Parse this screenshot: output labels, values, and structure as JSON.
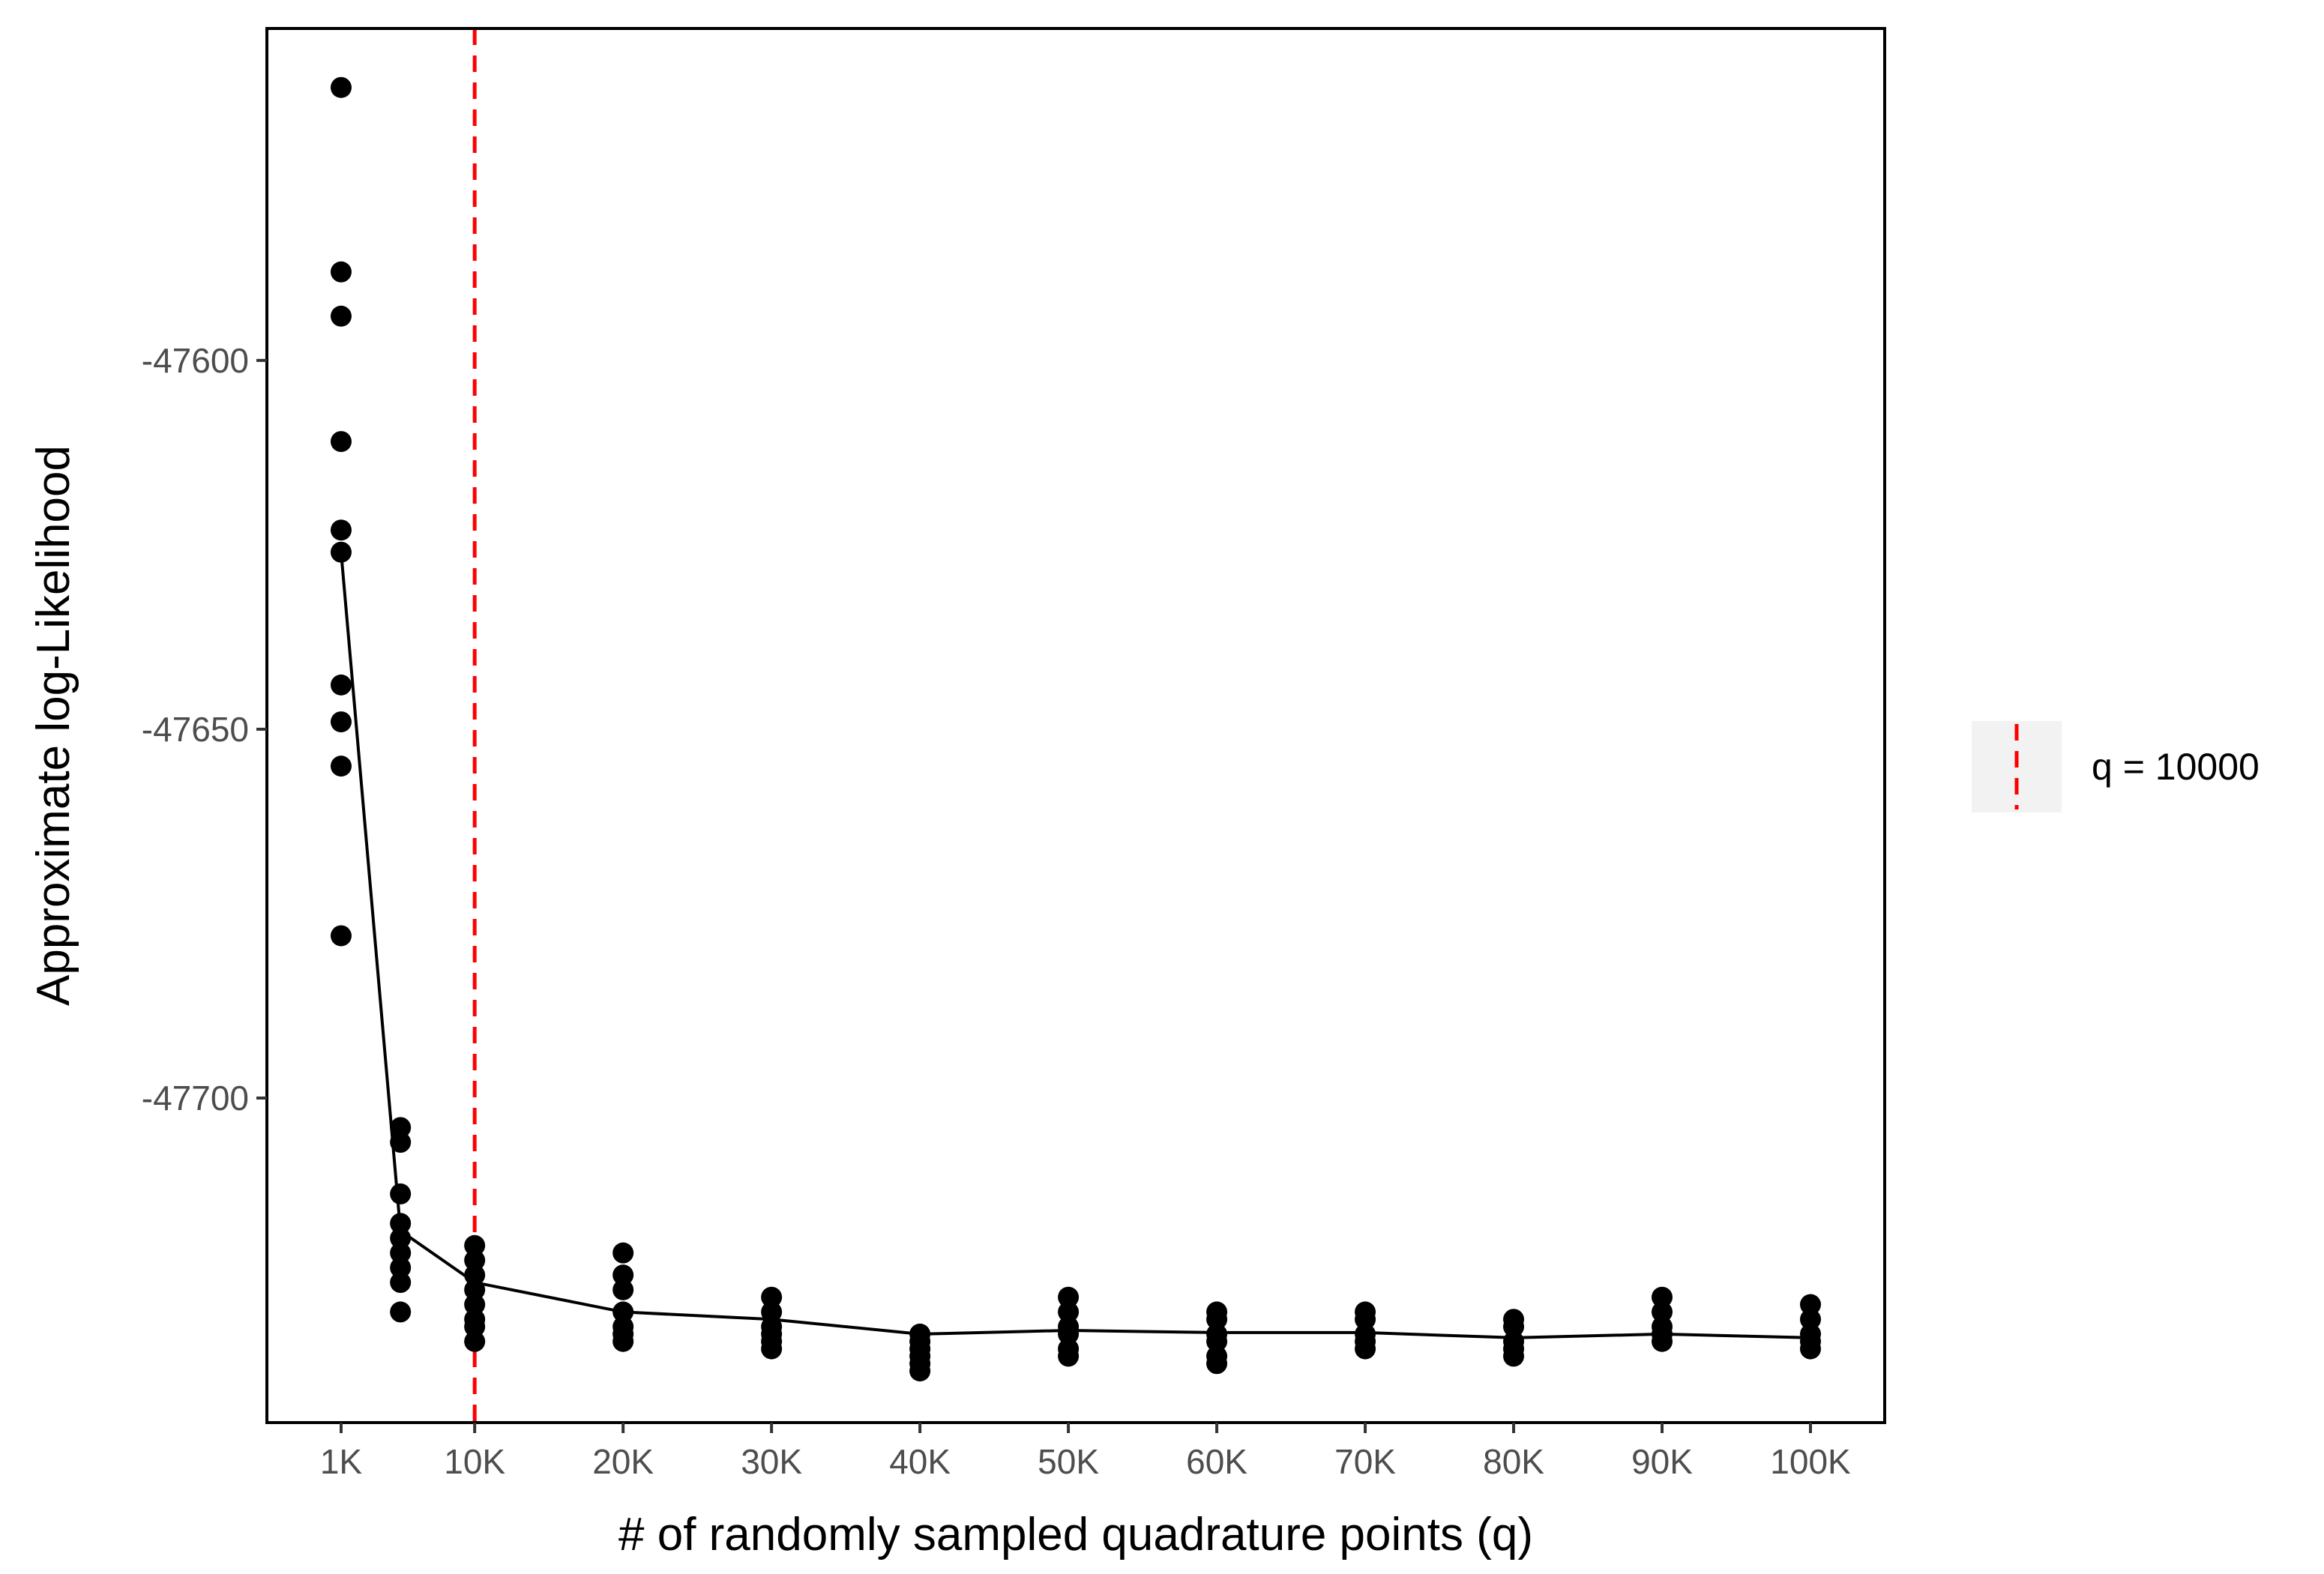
{
  "chart_data": {
    "type": "scatter",
    "xlabel": "# of randomly sampled quadrature points (q)",
    "ylabel": "Approximate log-Likelihood",
    "x_tick_values": [
      1000,
      10000,
      20000,
      30000,
      40000,
      50000,
      60000,
      70000,
      80000,
      90000,
      100000
    ],
    "x_tick_labels": [
      "1K",
      "10K",
      "20K",
      "30K",
      "40K",
      "50K",
      "60K",
      "70K",
      "80K",
      "90K",
      "100K"
    ],
    "y_tick_values": [
      -47600,
      -47650,
      -47700
    ],
    "y_tick_labels": [
      "-47600",
      "-47650",
      "-47700"
    ],
    "xlim": [
      -4000,
      105000
    ],
    "ylim": [
      -47744,
      -47555
    ],
    "grid": false,
    "legend_position": "right",
    "reference_line": {
      "x": 10000,
      "label": "q = 10000",
      "color": "#ff0000",
      "style": "dashed"
    },
    "points": [
      {
        "x": 1000,
        "y": [
          -47563,
          -47588,
          -47594,
          -47611,
          -47623,
          -47626,
          -47644,
          -47649,
          -47655,
          -47678
        ]
      },
      {
        "x": 5000,
        "y": [
          -47704,
          -47706,
          -47713,
          -47717,
          -47719,
          -47721,
          -47723,
          -47725,
          -47729
        ]
      },
      {
        "x": 10000,
        "y": [
          -47720,
          -47722,
          -47724,
          -47726,
          -47728,
          -47730,
          -47731,
          -47733
        ]
      },
      {
        "x": 20000,
        "y": [
          -47721,
          -47724,
          -47726,
          -47729,
          -47731,
          -47732,
          -47733
        ]
      },
      {
        "x": 30000,
        "y": [
          -47727,
          -47729,
          -47731,
          -47732,
          -47733,
          -47734
        ]
      },
      {
        "x": 40000,
        "y": [
          -47732,
          -47733,
          -47734,
          -47735,
          -47736,
          -47737
        ]
      },
      {
        "x": 50000,
        "y": [
          -47727,
          -47729,
          -47731,
          -47732,
          -47734,
          -47735
        ]
      },
      {
        "x": 60000,
        "y": [
          -47729,
          -47730,
          -47732,
          -47733,
          -47735,
          -47736
        ]
      },
      {
        "x": 70000,
        "y": [
          -47729,
          -47730,
          -47732,
          -47733,
          -47734
        ]
      },
      {
        "x": 80000,
        "y": [
          -47730,
          -47731,
          -47733,
          -47734,
          -47735
        ]
      },
      {
        "x": 90000,
        "y": [
          -47727,
          -47729,
          -47731,
          -47732,
          -47733
        ]
      },
      {
        "x": 100000,
        "y": [
          -47728,
          -47730,
          -47732,
          -47733,
          -47734
        ]
      }
    ],
    "mean_line": {
      "x": [
        1000,
        5000,
        10000,
        20000,
        30000,
        40000,
        50000,
        60000,
        70000,
        80000,
        90000,
        100000
      ],
      "y": [
        -47626,
        -47718,
        -47725,
        -47729,
        -47730,
        -47732,
        -47731.5,
        -47731.8,
        -47731.8,
        -47732.5,
        -47732,
        -47732.5
      ]
    },
    "colors": {
      "points": "#000000",
      "line": "#000000",
      "reference": "#ff0000",
      "legend_key_bg": "#f2f2f2"
    }
  }
}
